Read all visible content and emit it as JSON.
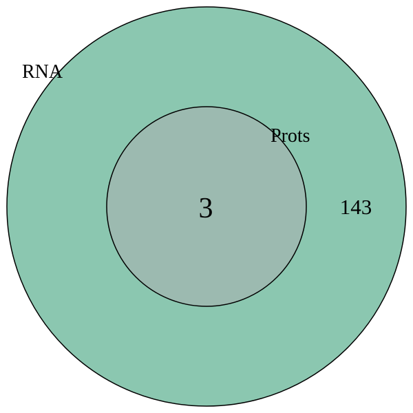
{
  "venn": {
    "sets": [
      {
        "name": "RNA",
        "fill": "#8bc7b0"
      },
      {
        "name": "Prots",
        "fill": "#9cbab0"
      }
    ],
    "regions": {
      "rna_only": "143",
      "overlap": "3"
    },
    "stroke": "#000000",
    "background": "#ffffff"
  }
}
